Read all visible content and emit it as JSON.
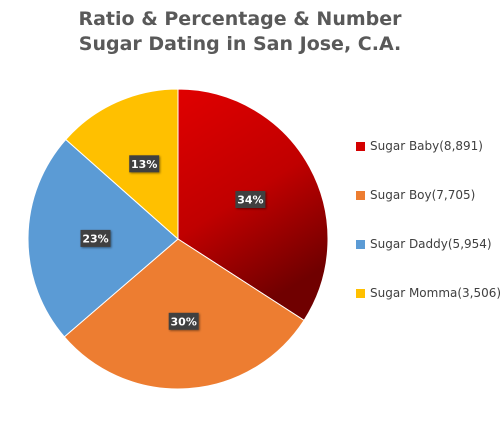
{
  "chart_data": {
    "type": "pie",
    "title": "Ratio & Percentage & Number",
    "subtitle": "Sugar Dating in San Jose, C.A.",
    "legend_position": "right",
    "slices": [
      {
        "name": "Sugar Baby",
        "legend_label": "Sugar Baby(8,891)",
        "value": 8891,
        "percent_label": "34%",
        "color": "#d40000",
        "color_dark": "#7a0000"
      },
      {
        "name": "Sugar Boy",
        "legend_label": "Sugar Boy(7,705)",
        "value": 7705,
        "percent_label": "30%",
        "color": "#ed7d31",
        "color_dark": "#ed7d31"
      },
      {
        "name": "Sugar Daddy",
        "legend_label": "Sugar Daddy(5,954)",
        "value": 5954,
        "percent_label": "23%",
        "color": "#5b9bd5",
        "color_dark": "#5b9bd5"
      },
      {
        "name": "Sugar Momma",
        "legend_label": "Sugar Momma(3,506)",
        "value": 3506,
        "percent_label": "13%",
        "color": "#ffc000",
        "color_dark": "#ffc000"
      }
    ]
  }
}
